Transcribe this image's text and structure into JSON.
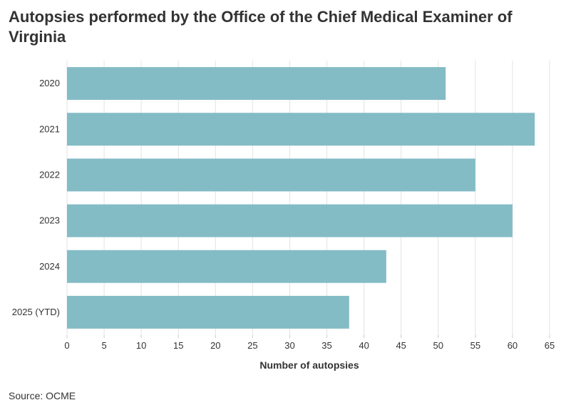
{
  "chart_data": {
    "type": "bar",
    "orientation": "horizontal",
    "title": "Autopsies performed by the Office of the Chief Medical Examiner of Virginia",
    "xlabel": "Number of autopsies",
    "ylabel": "",
    "categories": [
      "2020",
      "2021",
      "2022",
      "2023",
      "2024",
      "2025 (YTD)"
    ],
    "values": [
      51,
      63,
      55,
      60,
      43,
      38
    ],
    "xlim": [
      0,
      65
    ],
    "xticks": [
      0,
      5,
      10,
      15,
      20,
      25,
      30,
      35,
      40,
      45,
      50,
      55,
      60,
      65
    ],
    "grid": true,
    "bar_color": "#84bcc6",
    "source": "Source: OCME"
  }
}
